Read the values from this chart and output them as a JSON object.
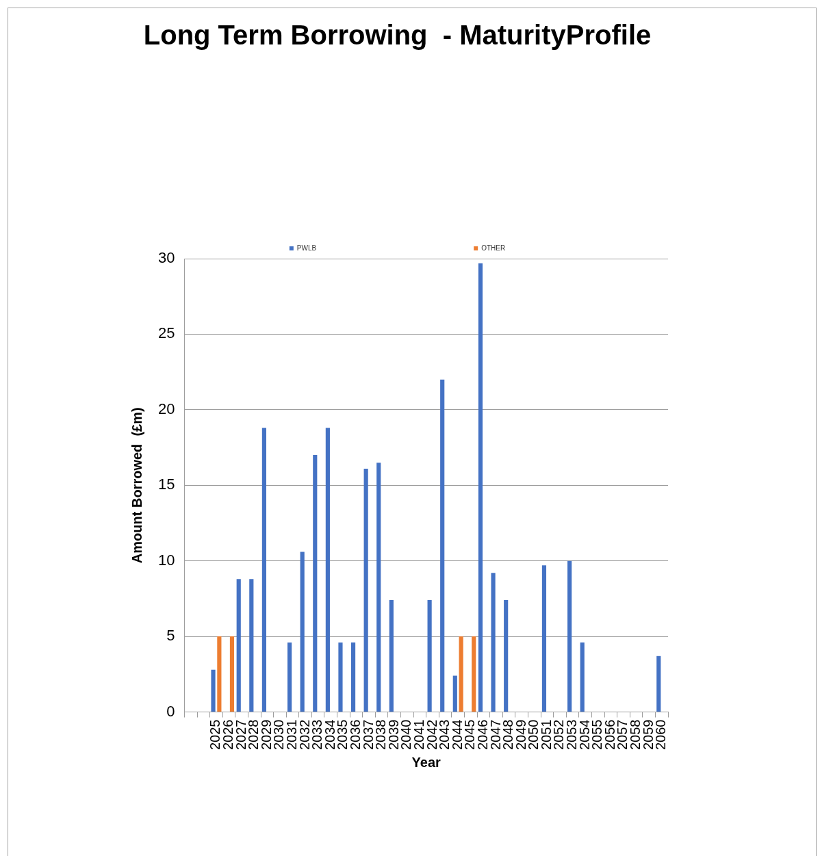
{
  "chart_data": {
    "type": "bar",
    "title": "Long Term Borrowing  - MaturityProfile",
    "xlabel": "Year",
    "ylabel": "Amount Borrowed  (£m)",
    "categories": [
      null,
      null,
      "2025",
      "2026",
      "2027",
      "2028",
      "2029",
      "2030",
      "2031",
      "2032",
      "2033",
      "2034",
      "2035",
      "2036",
      "2037",
      "2038",
      "2039",
      "2040",
      "2041",
      "2042",
      "2043",
      "2044",
      "2045",
      "2046",
      "2047",
      "2048",
      "2049",
      "2050",
      "2051",
      "2052",
      "2053",
      "2054",
      "2055",
      "2056",
      "2057",
      "2058",
      "2059",
      "2060"
    ],
    "series": [
      {
        "name": "PWLB",
        "color": "#4472c4",
        "values": [
          null,
          null,
          2.8,
          null,
          8.8,
          8.8,
          18.8,
          null,
          4.6,
          10.6,
          17.0,
          18.8,
          4.6,
          4.6,
          16.1,
          16.5,
          7.4,
          null,
          null,
          7.4,
          22.0,
          2.4,
          null,
          29.7,
          9.2,
          7.4,
          null,
          null,
          9.7,
          null,
          10.0,
          4.6,
          null,
          null,
          null,
          null,
          null,
          3.7
        ]
      },
      {
        "name": "OTHER",
        "color": "#ed7d31",
        "values": [
          null,
          null,
          5,
          5,
          null,
          null,
          null,
          null,
          null,
          null,
          null,
          null,
          null,
          null,
          null,
          null,
          null,
          null,
          null,
          null,
          null,
          5,
          5,
          null,
          null,
          null,
          null,
          null,
          null,
          null,
          null,
          null,
          null,
          null,
          null,
          null,
          null,
          null
        ]
      }
    ],
    "ylim": [
      0,
      30
    ],
    "yticks": [
      0,
      5,
      10,
      15,
      20,
      25,
      30
    ],
    "grid": "y",
    "legend": "top"
  }
}
